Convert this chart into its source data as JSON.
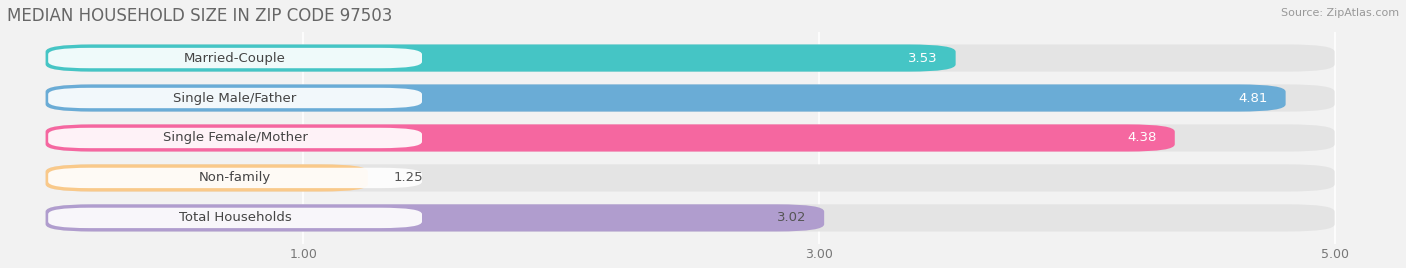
{
  "title": "MEDIAN HOUSEHOLD SIZE IN ZIP CODE 97503",
  "source": "Source: ZipAtlas.com",
  "categories": [
    "Married-Couple",
    "Single Male/Father",
    "Single Female/Mother",
    "Non-family",
    "Total Households"
  ],
  "values": [
    3.53,
    4.81,
    4.38,
    1.25,
    3.02
  ],
  "bar_colors": [
    "#45c5c5",
    "#6aacd6",
    "#f567a0",
    "#f9c98a",
    "#b09dce"
  ],
  "value_label_colors": [
    "white",
    "white",
    "white",
    "#555555",
    "#555555"
  ],
  "xlim_min": -0.15,
  "xlim_max": 5.25,
  "xticks": [
    1.0,
    3.0,
    5.0
  ],
  "background_color": "#f2f2f2",
  "bar_bg_color": "#e4e4e4",
  "title_fontsize": 12,
  "label_fontsize": 9.5,
  "value_fontsize": 9.5,
  "source_fontsize": 8
}
